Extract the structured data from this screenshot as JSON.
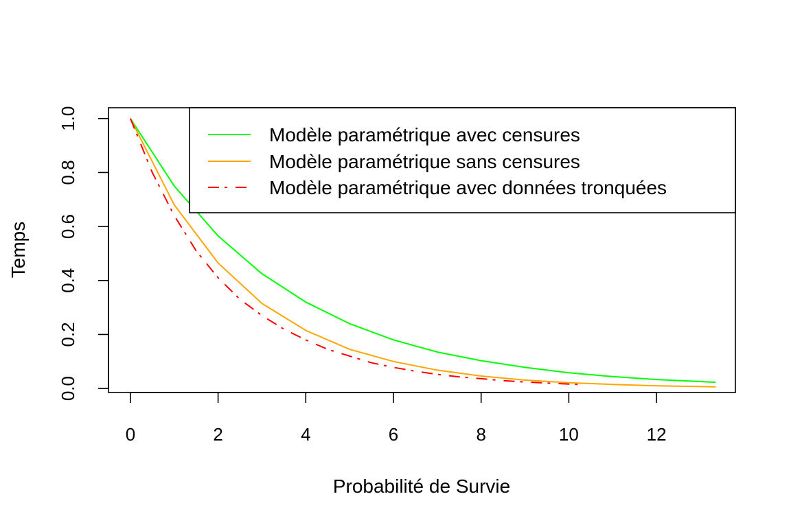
{
  "chart_data": {
    "type": "line",
    "xlabel": "Probabilité de Survie",
    "ylabel": "Temps",
    "xlim": [
      -0.5,
      13.8
    ],
    "ylim": [
      -0.015,
      1.04
    ],
    "x_ticks": [
      0,
      2,
      4,
      6,
      8,
      10,
      12
    ],
    "y_ticks": [
      0.0,
      0.2,
      0.4,
      0.6,
      0.8,
      1.0
    ],
    "x_tick_labels": [
      "0",
      "2",
      "4",
      "6",
      "8",
      "10",
      "12"
    ],
    "y_tick_labels": [
      "0.0",
      "0.2",
      "0.4",
      "0.6",
      "0.8",
      "1.0"
    ],
    "grid": false,
    "legend_position": "top-right",
    "series": [
      {
        "name": "Modèle paramétrique avec censures",
        "color": "#00ff00",
        "line_style": "solid",
        "x": [
          0,
          1,
          2,
          3,
          4,
          5,
          6,
          7,
          8,
          9,
          10,
          11,
          12,
          13.35
        ],
        "y": [
          1.0,
          0.75,
          0.565,
          0.425,
          0.32,
          0.24,
          0.18,
          0.135,
          0.103,
          0.078,
          0.058,
          0.044,
          0.033,
          0.023
        ]
      },
      {
        "name": "Modèle paramétrique sans censures",
        "color": "#ffa500",
        "line_style": "solid",
        "x": [
          0,
          1,
          2,
          3,
          4,
          5,
          6,
          7,
          8,
          9,
          10,
          11,
          12,
          13.35
        ],
        "y": [
          1.0,
          0.68,
          0.465,
          0.315,
          0.215,
          0.145,
          0.1,
          0.068,
          0.046,
          0.031,
          0.021,
          0.015,
          0.01,
          0.006
        ]
      },
      {
        "name": "Modèle paramétrique avec données tronquées",
        "color": "#ff0000",
        "line_style": "twodash",
        "x": [
          0,
          0.5,
          1,
          1.5,
          2,
          2.5,
          3,
          3.5,
          4,
          4.5,
          5,
          5.5,
          6,
          6.5,
          7,
          7.5,
          8,
          8.5,
          9,
          9.5,
          10,
          10.3
        ],
        "y": [
          1.0,
          0.8,
          0.64,
          0.51,
          0.41,
          0.33,
          0.27,
          0.22,
          0.18,
          0.145,
          0.12,
          0.095,
          0.078,
          0.064,
          0.052,
          0.043,
          0.036,
          0.029,
          0.024,
          0.02,
          0.016,
          0.014
        ]
      }
    ]
  }
}
